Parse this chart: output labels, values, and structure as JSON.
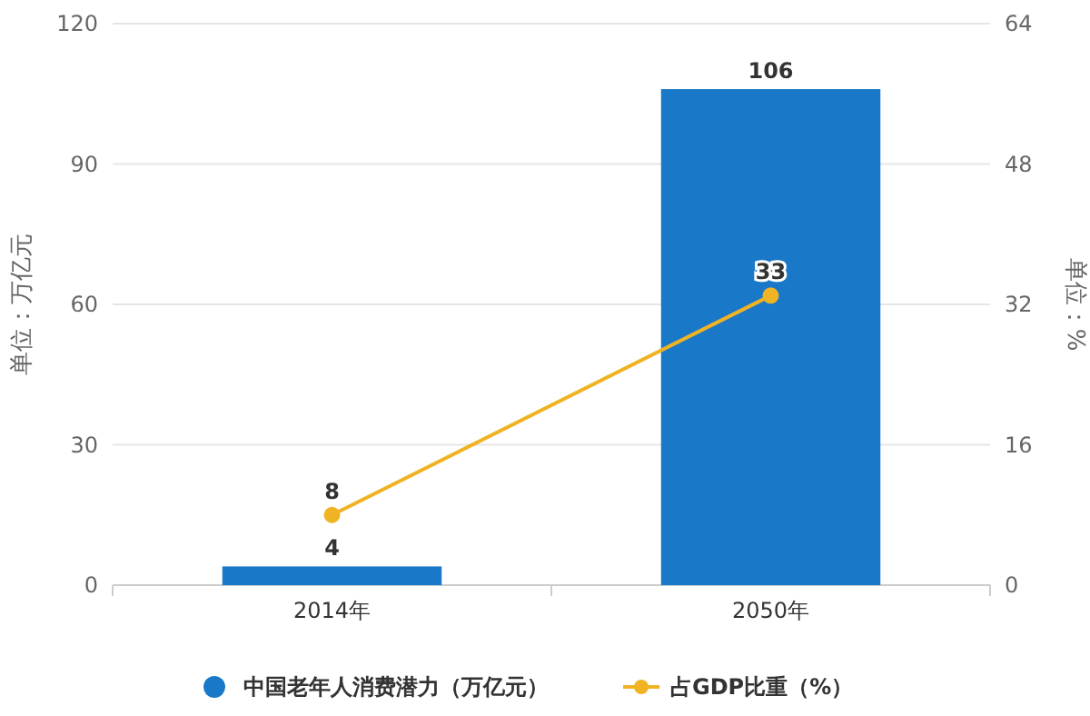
{
  "chart_data": {
    "type": "bar",
    "categories": [
      "2014年",
      "2050年"
    ],
    "ylabel": "单位：万亿元",
    "y2label": "单位：%",
    "ylim": [
      0,
      120
    ],
    "yticks": [
      0,
      30,
      60,
      90,
      120
    ],
    "y2lim": [
      0,
      64
    ],
    "y2ticks": [
      0,
      16,
      32,
      48,
      64
    ],
    "grid": "y",
    "legend": "bottom",
    "data_labels": true,
    "marker": "circle",
    "series": [
      {
        "name": "中国老年人消费潜力（万亿元）",
        "color": "#1a78c8",
        "values": [
          4,
          106
        ]
      },
      {
        "name": "占GDP比重（%）",
        "type": "line",
        "axis": "y2",
        "color": "#f0b323",
        "values": [
          8,
          33
        ]
      }
    ]
  }
}
